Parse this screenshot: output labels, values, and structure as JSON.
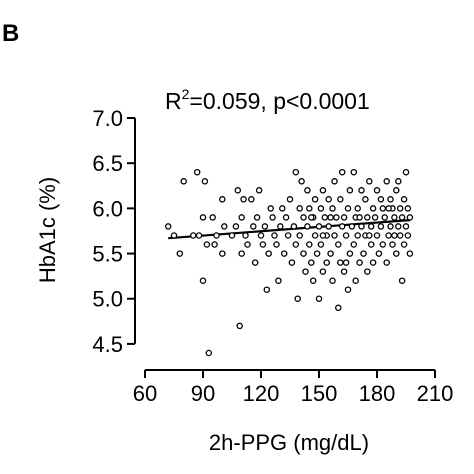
{
  "panel_label": "B",
  "stat": {
    "r2_prefix": "R",
    "r2_exp": "2",
    "r2_rest": "=0.059, p<0.0001"
  },
  "chart_data": {
    "type": "scatter",
    "title": "R2=0.059, p<0.0001",
    "xlabel": "2h-PPG (mg/dL)",
    "ylabel": "HbA1c (%)",
    "xlim": [
      60,
      210
    ],
    "ylim": [
      4.3,
      7.0
    ],
    "xticks": [
      60,
      90,
      120,
      150,
      180,
      210
    ],
    "yticks": [
      4.5,
      5.0,
      5.5,
      6.0,
      6.5,
      7.0
    ],
    "xtick_labels": [
      "60",
      "90",
      "120",
      "150",
      "180",
      "210"
    ],
    "ytick_labels": [
      "4.5",
      "5.0",
      "5.5",
      "6.0",
      "6.5",
      "7.0"
    ],
    "grid": false,
    "marker": "open-circle",
    "regression_line": {
      "x": [
        72,
        197
      ],
      "y": [
        5.67,
        5.87
      ]
    },
    "points": [
      [
        72,
        5.8
      ],
      [
        75,
        5.7
      ],
      [
        78,
        5.5
      ],
      [
        80,
        6.3
      ],
      [
        85,
        5.7
      ],
      [
        87,
        6.4
      ],
      [
        88,
        5.7
      ],
      [
        90,
        5.2
      ],
      [
        90,
        5.9
      ],
      [
        91,
        6.3
      ],
      [
        92,
        5.6
      ],
      [
        93,
        4.4
      ],
      [
        95,
        5.9
      ],
      [
        96,
        5.6
      ],
      [
        97,
        5.7
      ],
      [
        100,
        5.5
      ],
      [
        100,
        6.1
      ],
      [
        101,
        5.8
      ],
      [
        105,
        5.7
      ],
      [
        107,
        5.8
      ],
      [
        108,
        6.2
      ],
      [
        109,
        4.7
      ],
      [
        110,
        5.9
      ],
      [
        110,
        5.5
      ],
      [
        111,
        6.1
      ],
      [
        112,
        5.7
      ],
      [
        113,
        5.6
      ],
      [
        115,
        6.1
      ],
      [
        116,
        5.8
      ],
      [
        117,
        5.4
      ],
      [
        118,
        5.9
      ],
      [
        119,
        6.2
      ],
      [
        120,
        5.7
      ],
      [
        121,
        5.6
      ],
      [
        122,
        5.8
      ],
      [
        123,
        5.1
      ],
      [
        124,
        5.5
      ],
      [
        125,
        6.0
      ],
      [
        126,
        5.9
      ],
      [
        127,
        5.7
      ],
      [
        128,
        5.6
      ],
      [
        129,
        5.2
      ],
      [
        130,
        5.8
      ],
      [
        131,
        6.0
      ],
      [
        132,
        5.5
      ],
      [
        133,
        5.9
      ],
      [
        134,
        5.7
      ],
      [
        135,
        6.1
      ],
      [
        136,
        5.4
      ],
      [
        137,
        5.8
      ],
      [
        138,
        6.4
      ],
      [
        138,
        5.6
      ],
      [
        139,
        5.0
      ],
      [
        140,
        6.0
      ],
      [
        140,
        5.7
      ],
      [
        141,
        6.3
      ],
      [
        142,
        5.5
      ],
      [
        142,
        5.9
      ],
      [
        143,
        5.3
      ],
      [
        144,
        6.2
      ],
      [
        144,
        5.8
      ],
      [
        145,
        5.6
      ],
      [
        145,
        6.0
      ],
      [
        146,
        5.4
      ],
      [
        147,
        5.9
      ],
      [
        147,
        5.2
      ],
      [
        148,
        6.1
      ],
      [
        148,
        5.7
      ],
      [
        149,
        5.5
      ],
      [
        150,
        5.0
      ],
      [
        150,
        5.8
      ],
      [
        151,
        6.0
      ],
      [
        151,
        5.6
      ],
      [
        152,
        5.3
      ],
      [
        152,
        6.2
      ],
      [
        153,
        5.9
      ],
      [
        154,
        5.7
      ],
      [
        154,
        5.4
      ],
      [
        155,
        6.1
      ],
      [
        155,
        5.8
      ],
      [
        156,
        5.5
      ],
      [
        157,
        6.0
      ],
      [
        157,
        5.2
      ],
      [
        158,
        5.7
      ],
      [
        158,
        6.3
      ],
      [
        159,
        5.9
      ],
      [
        160,
        5.6
      ],
      [
        160,
        4.9
      ],
      [
        161,
        6.1
      ],
      [
        161,
        5.4
      ],
      [
        162,
        5.8
      ],
      [
        162,
        6.4
      ],
      [
        163,
        5.3
      ],
      [
        163,
        5.9
      ],
      [
        164,
        5.7
      ],
      [
        165,
        6.0
      ],
      [
        165,
        5.1
      ],
      [
        166,
        5.5
      ],
      [
        166,
        6.2
      ],
      [
        167,
        5.8
      ],
      [
        168,
        5.6
      ],
      [
        168,
        6.4
      ],
      [
        169,
        5.9
      ],
      [
        169,
        5.2
      ],
      [
        170,
        5.7
      ],
      [
        170,
        6.0
      ],
      [
        171,
        5.4
      ],
      [
        172,
        6.2
      ],
      [
        172,
        5.8
      ],
      [
        173,
        5.5
      ],
      [
        174,
        6.1
      ],
      [
        174,
        5.7
      ],
      [
        175,
        5.9
      ],
      [
        175,
        5.3
      ],
      [
        176,
        6.3
      ],
      [
        177,
        5.8
      ],
      [
        177,
        5.6
      ],
      [
        178,
        6.0
      ],
      [
        178,
        5.4
      ],
      [
        179,
        5.9
      ],
      [
        180,
        5.7
      ],
      [
        180,
        6.2
      ],
      [
        181,
        5.5
      ],
      [
        182,
        6.1
      ],
      [
        182,
        5.8
      ],
      [
        183,
        5.6
      ],
      [
        183,
        6.0
      ],
      [
        184,
        5.9
      ],
      [
        185,
        5.4
      ],
      [
        185,
        6.3
      ],
      [
        186,
        5.7
      ],
      [
        187,
        6.1
      ],
      [
        187,
        5.8
      ],
      [
        188,
        5.6
      ],
      [
        188,
        6.0
      ],
      [
        189,
        5.9
      ],
      [
        190,
        5.5
      ],
      [
        190,
        6.2
      ],
      [
        191,
        5.8
      ],
      [
        191,
        6.3
      ],
      [
        192,
        5.7
      ],
      [
        192,
        6.0
      ],
      [
        193,
        5.2
      ],
      [
        193,
        5.9
      ],
      [
        194,
        6.1
      ],
      [
        194,
        5.6
      ],
      [
        195,
        5.8
      ],
      [
        195,
        6.4
      ],
      [
        196,
        5.7
      ],
      [
        196,
        6.0
      ],
      [
        197,
        5.9
      ],
      [
        197,
        5.5
      ],
      [
        146,
        5.9
      ],
      [
        152,
        5.7
      ],
      [
        156,
        5.9
      ],
      [
        164,
        5.4
      ],
      [
        171,
        5.9
      ],
      [
        176,
        5.7
      ],
      [
        186,
        6.0
      ],
      [
        189,
        5.7
      ]
    ]
  }
}
